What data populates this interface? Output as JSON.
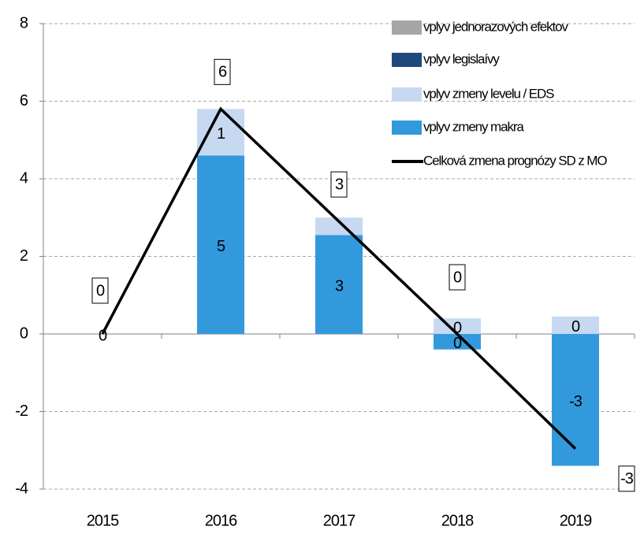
{
  "chart_data": {
    "type": "bar",
    "categories": [
      "2015",
      "2016",
      "2017",
      "2018",
      "2019"
    ],
    "series": [
      {
        "name": "vplyv jednorazových efektov",
        "color": "#a6a6a6",
        "values": [
          0,
          0,
          0,
          0,
          0
        ]
      },
      {
        "name": "vplyv legislaívy",
        "color": "#1f497d",
        "values": [
          0,
          0,
          0,
          0,
          0
        ]
      },
      {
        "name": "vplyv zmeny levelu / EDS",
        "color": "#c6d9f1",
        "values": [
          0,
          1.2,
          0.45,
          0.4,
          0.45
        ],
        "value_labels": [
          null,
          "1",
          null,
          "0",
          "0"
        ]
      },
      {
        "name": "vplyv zmeny makra",
        "color": "#3399dd",
        "values": [
          0,
          4.6,
          2.55,
          -0.4,
          -3.4
        ],
        "value_labels": [
          "0",
          "5",
          "3",
          "0",
          "-3"
        ]
      },
      {
        "name": "Celková zmena prognózy SD z MO",
        "color": "#000000",
        "type": "line",
        "values": [
          0,
          5.8,
          2.9,
          0,
          -2.96
        ],
        "value_labels": [
          "0",
          "6",
          "3",
          "0",
          "-3"
        ]
      }
    ],
    "ylim": [
      -4,
      8
    ],
    "yticks": [
      -4,
      -2,
      0,
      2,
      4,
      6,
      8
    ],
    "grid": true,
    "legend": "top-right"
  }
}
